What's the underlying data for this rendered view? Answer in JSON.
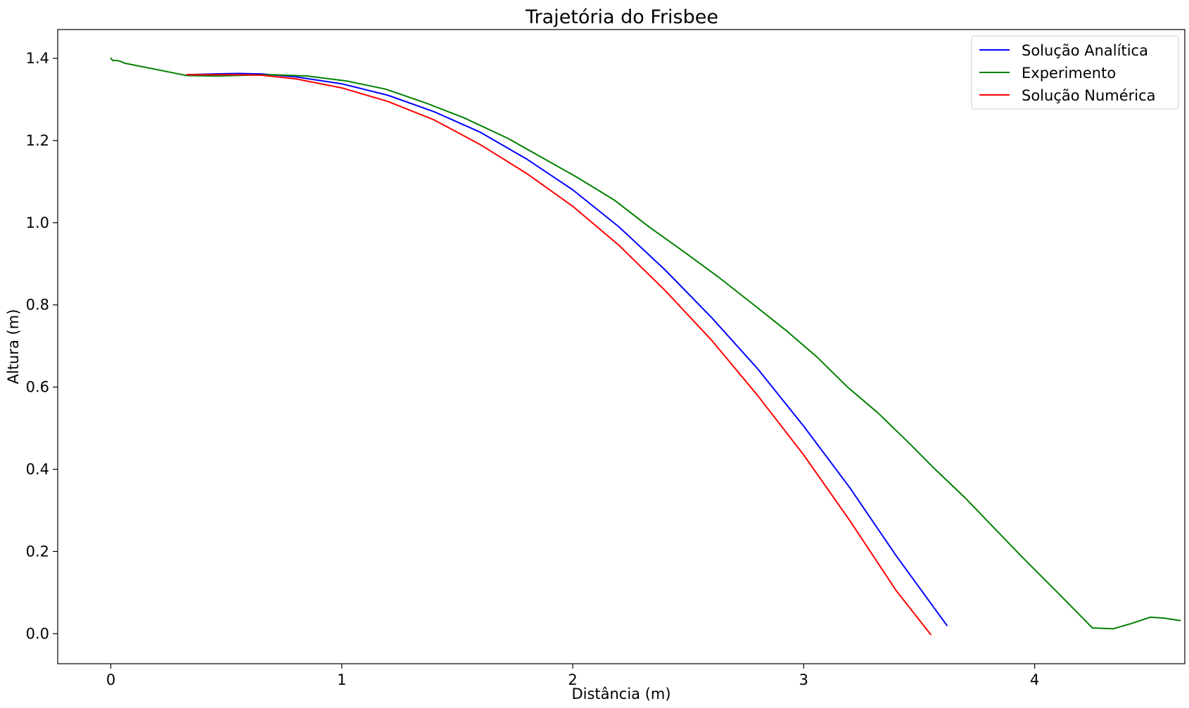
{
  "chart_data": {
    "type": "line",
    "title": "Trajetória do Frisbee",
    "xlabel": "Distância (m)",
    "ylabel": "Altura (m)",
    "xlim": [
      -0.23,
      4.65
    ],
    "ylim": [
      -0.073,
      1.47
    ],
    "xticks": [
      0,
      1,
      2,
      3,
      4
    ],
    "xtick_labels": [
      "0",
      "1",
      "2",
      "3",
      "4"
    ],
    "yticks": [
      0.0,
      0.2,
      0.4,
      0.6,
      0.8,
      1.0,
      1.2,
      1.4
    ],
    "ytick_labels": [
      "0.0",
      "0.2",
      "0.4",
      "0.6",
      "0.8",
      "1.0",
      "1.2",
      "1.4"
    ],
    "grid": false,
    "legend_position": "top-right",
    "series": [
      {
        "name": "Solução Analítica",
        "color": "#0000ff",
        "x": [
          0.33,
          0.45,
          0.55,
          0.65,
          0.8,
          1.0,
          1.2,
          1.4,
          1.6,
          1.8,
          2.0,
          2.2,
          2.4,
          2.6,
          2.8,
          3.0,
          3.2,
          3.4,
          3.62
        ],
        "y": [
          1.36,
          1.362,
          1.363,
          1.362,
          1.355,
          1.338,
          1.31,
          1.27,
          1.22,
          1.155,
          1.08,
          0.99,
          0.885,
          0.77,
          0.645,
          0.505,
          0.355,
          0.19,
          0.02
        ]
      },
      {
        "name": "Experimento",
        "color": "#008000",
        "x": [
          0.0,
          0.01,
          0.02,
          0.04,
          0.06,
          0.33,
          0.45,
          0.6,
          0.7,
          0.85,
          1.02,
          1.19,
          1.37,
          1.53,
          1.72,
          2.02,
          2.18,
          2.33,
          2.48,
          2.63,
          2.78,
          2.93,
          3.06,
          3.19,
          3.32,
          3.46,
          3.56,
          3.7,
          3.94,
          4.1,
          4.25,
          4.34,
          4.42,
          4.5,
          4.56,
          4.63
        ],
        "y": [
          1.4,
          1.394,
          1.395,
          1.393,
          1.388,
          1.358,
          1.357,
          1.359,
          1.36,
          1.357,
          1.345,
          1.325,
          1.29,
          1.255,
          1.205,
          1.11,
          1.055,
          0.99,
          0.93,
          0.868,
          0.802,
          0.735,
          0.672,
          0.6,
          0.538,
          0.462,
          0.405,
          0.33,
          0.19,
          0.1,
          0.014,
          0.012,
          0.025,
          0.04,
          0.038,
          0.032
        ]
      },
      {
        "name": "Solução Numérica",
        "color": "#ff0000",
        "x": [
          0.33,
          0.45,
          0.55,
          0.65,
          0.8,
          1.0,
          1.2,
          1.4,
          1.6,
          1.8,
          2.0,
          2.2,
          2.4,
          2.6,
          2.8,
          3.0,
          3.2,
          3.4,
          3.55
        ],
        "y": [
          1.36,
          1.36,
          1.36,
          1.359,
          1.35,
          1.328,
          1.295,
          1.25,
          1.19,
          1.12,
          1.04,
          0.945,
          0.835,
          0.715,
          0.58,
          0.435,
          0.275,
          0.105,
          -0.002
        ]
      }
    ]
  }
}
